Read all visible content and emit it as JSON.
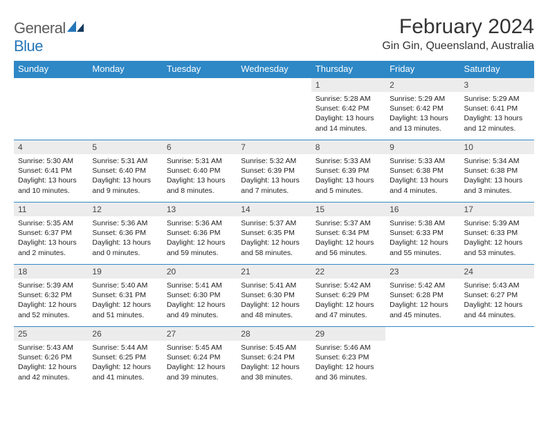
{
  "brand": {
    "part1": "General",
    "part2": "Blue"
  },
  "title": "February 2024",
  "location": "Gin Gin, Queensland, Australia",
  "columns": [
    "Sunday",
    "Monday",
    "Tuesday",
    "Wednesday",
    "Thursday",
    "Friday",
    "Saturday"
  ],
  "colors": {
    "header_bg": "#2e88c6",
    "header_text": "#ffffff",
    "daynum_bg": "#ececec",
    "cell_border": "#2e88c6",
    "logo_gray": "#5c5c5c",
    "logo_blue": "#2576b9"
  },
  "weeks": [
    [
      {
        "n": "",
        "sr": "",
        "ss": "",
        "dl": ""
      },
      {
        "n": "",
        "sr": "",
        "ss": "",
        "dl": ""
      },
      {
        "n": "",
        "sr": "",
        "ss": "",
        "dl": ""
      },
      {
        "n": "",
        "sr": "",
        "ss": "",
        "dl": ""
      },
      {
        "n": "1",
        "sr": "Sunrise: 5:28 AM",
        "ss": "Sunset: 6:42 PM",
        "dl": "Daylight: 13 hours and 14 minutes."
      },
      {
        "n": "2",
        "sr": "Sunrise: 5:29 AM",
        "ss": "Sunset: 6:42 PM",
        "dl": "Daylight: 13 hours and 13 minutes."
      },
      {
        "n": "3",
        "sr": "Sunrise: 5:29 AM",
        "ss": "Sunset: 6:41 PM",
        "dl": "Daylight: 13 hours and 12 minutes."
      }
    ],
    [
      {
        "n": "4",
        "sr": "Sunrise: 5:30 AM",
        "ss": "Sunset: 6:41 PM",
        "dl": "Daylight: 13 hours and 10 minutes."
      },
      {
        "n": "5",
        "sr": "Sunrise: 5:31 AM",
        "ss": "Sunset: 6:40 PM",
        "dl": "Daylight: 13 hours and 9 minutes."
      },
      {
        "n": "6",
        "sr": "Sunrise: 5:31 AM",
        "ss": "Sunset: 6:40 PM",
        "dl": "Daylight: 13 hours and 8 minutes."
      },
      {
        "n": "7",
        "sr": "Sunrise: 5:32 AM",
        "ss": "Sunset: 6:39 PM",
        "dl": "Daylight: 13 hours and 7 minutes."
      },
      {
        "n": "8",
        "sr": "Sunrise: 5:33 AM",
        "ss": "Sunset: 6:39 PM",
        "dl": "Daylight: 13 hours and 5 minutes."
      },
      {
        "n": "9",
        "sr": "Sunrise: 5:33 AM",
        "ss": "Sunset: 6:38 PM",
        "dl": "Daylight: 13 hours and 4 minutes."
      },
      {
        "n": "10",
        "sr": "Sunrise: 5:34 AM",
        "ss": "Sunset: 6:38 PM",
        "dl": "Daylight: 13 hours and 3 minutes."
      }
    ],
    [
      {
        "n": "11",
        "sr": "Sunrise: 5:35 AM",
        "ss": "Sunset: 6:37 PM",
        "dl": "Daylight: 13 hours and 2 minutes."
      },
      {
        "n": "12",
        "sr": "Sunrise: 5:36 AM",
        "ss": "Sunset: 6:36 PM",
        "dl": "Daylight: 13 hours and 0 minutes."
      },
      {
        "n": "13",
        "sr": "Sunrise: 5:36 AM",
        "ss": "Sunset: 6:36 PM",
        "dl": "Daylight: 12 hours and 59 minutes."
      },
      {
        "n": "14",
        "sr": "Sunrise: 5:37 AM",
        "ss": "Sunset: 6:35 PM",
        "dl": "Daylight: 12 hours and 58 minutes."
      },
      {
        "n": "15",
        "sr": "Sunrise: 5:37 AM",
        "ss": "Sunset: 6:34 PM",
        "dl": "Daylight: 12 hours and 56 minutes."
      },
      {
        "n": "16",
        "sr": "Sunrise: 5:38 AM",
        "ss": "Sunset: 6:33 PM",
        "dl": "Daylight: 12 hours and 55 minutes."
      },
      {
        "n": "17",
        "sr": "Sunrise: 5:39 AM",
        "ss": "Sunset: 6:33 PM",
        "dl": "Daylight: 12 hours and 53 minutes."
      }
    ],
    [
      {
        "n": "18",
        "sr": "Sunrise: 5:39 AM",
        "ss": "Sunset: 6:32 PM",
        "dl": "Daylight: 12 hours and 52 minutes."
      },
      {
        "n": "19",
        "sr": "Sunrise: 5:40 AM",
        "ss": "Sunset: 6:31 PM",
        "dl": "Daylight: 12 hours and 51 minutes."
      },
      {
        "n": "20",
        "sr": "Sunrise: 5:41 AM",
        "ss": "Sunset: 6:30 PM",
        "dl": "Daylight: 12 hours and 49 minutes."
      },
      {
        "n": "21",
        "sr": "Sunrise: 5:41 AM",
        "ss": "Sunset: 6:30 PM",
        "dl": "Daylight: 12 hours and 48 minutes."
      },
      {
        "n": "22",
        "sr": "Sunrise: 5:42 AM",
        "ss": "Sunset: 6:29 PM",
        "dl": "Daylight: 12 hours and 47 minutes."
      },
      {
        "n": "23",
        "sr": "Sunrise: 5:42 AM",
        "ss": "Sunset: 6:28 PM",
        "dl": "Daylight: 12 hours and 45 minutes."
      },
      {
        "n": "24",
        "sr": "Sunrise: 5:43 AM",
        "ss": "Sunset: 6:27 PM",
        "dl": "Daylight: 12 hours and 44 minutes."
      }
    ],
    [
      {
        "n": "25",
        "sr": "Sunrise: 5:43 AM",
        "ss": "Sunset: 6:26 PM",
        "dl": "Daylight: 12 hours and 42 minutes."
      },
      {
        "n": "26",
        "sr": "Sunrise: 5:44 AM",
        "ss": "Sunset: 6:25 PM",
        "dl": "Daylight: 12 hours and 41 minutes."
      },
      {
        "n": "27",
        "sr": "Sunrise: 5:45 AM",
        "ss": "Sunset: 6:24 PM",
        "dl": "Daylight: 12 hours and 39 minutes."
      },
      {
        "n": "28",
        "sr": "Sunrise: 5:45 AM",
        "ss": "Sunset: 6:24 PM",
        "dl": "Daylight: 12 hours and 38 minutes."
      },
      {
        "n": "29",
        "sr": "Sunrise: 5:46 AM",
        "ss": "Sunset: 6:23 PM",
        "dl": "Daylight: 12 hours and 36 minutes."
      },
      {
        "n": "",
        "sr": "",
        "ss": "",
        "dl": ""
      },
      {
        "n": "",
        "sr": "",
        "ss": "",
        "dl": ""
      }
    ]
  ]
}
